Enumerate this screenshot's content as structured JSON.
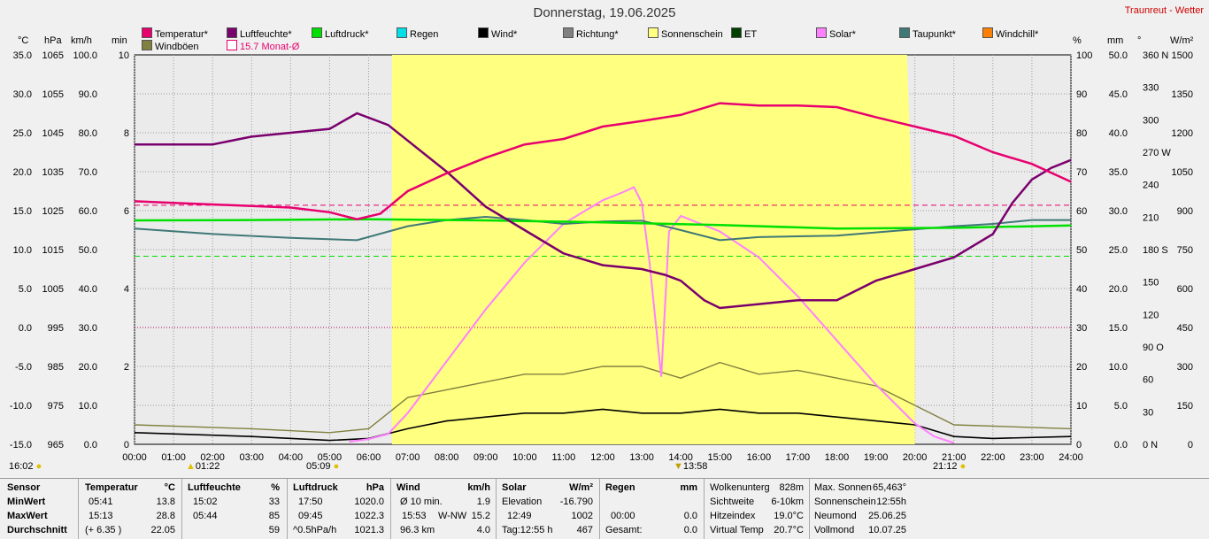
{
  "title": "Donnerstag, 19.06.2025",
  "brand": "Traunreut - Wetter",
  "units": {
    "c": "°C",
    "hpa": "hPa",
    "kmh": "km/h",
    "min": "min",
    "pct": "%",
    "mm": "mm",
    "deg": "°",
    "wm2": "W/m²"
  },
  "legend": [
    {
      "label": "Temperatur*",
      "color": "#e8006e"
    },
    {
      "label": "Luftfeuchte*",
      "color": "#7a006e"
    },
    {
      "label": "Luftdruck*",
      "color": "#00e000"
    },
    {
      "label": "Regen",
      "color": "#00e0e8"
    },
    {
      "label": "Wind*",
      "color": "#000000"
    },
    {
      "label": "Richtung*",
      "color": "#808080"
    },
    {
      "label": "Sonnenschein",
      "color": "#ffff80"
    },
    {
      "label": "ET",
      "color": "#004000"
    },
    {
      "label": "Solar*",
      "color": "#ff80ff"
    },
    {
      "label": "Taupunkt*",
      "color": "#407878"
    },
    {
      "label": "Windchill*",
      "color": "#ff8000"
    },
    {
      "label": "Windböen",
      "color": "#808040"
    },
    {
      "label": "15.7 Monat-Ø",
      "color": "#e8006e"
    }
  ],
  "axes": {
    "temp": [
      "35.0",
      "30.0",
      "25.0",
      "20.0",
      "15.0",
      "10.0",
      "5.0",
      "0.0",
      "-5.0",
      "-10.0",
      "-15.0"
    ],
    "press": [
      "1065",
      "1055",
      "1045",
      "1035",
      "1025",
      "1015",
      "1005",
      "995",
      "985",
      "975",
      "965"
    ],
    "wind": [
      "100.0",
      "90.0",
      "80.0",
      "70.0",
      "60.0",
      "50.0",
      "40.0",
      "30.0",
      "20.0",
      "10.0",
      "0.0"
    ],
    "min": [
      "10",
      "8",
      "6",
      "4",
      "2",
      "0"
    ],
    "hum": [
      "100",
      "90",
      "80",
      "70",
      "60",
      "50",
      "40",
      "30",
      "20",
      "10",
      "0"
    ],
    "rain": [
      "50.0",
      "45.0",
      "40.0",
      "35.0",
      "30.0",
      "25.0",
      "20.0",
      "15.0",
      "10.0",
      "5.0",
      "0.0"
    ],
    "dir": [
      "360 N",
      "330",
      "300",
      "270 W",
      "240",
      "210",
      "180 S",
      "150",
      "120",
      "90 O",
      "60",
      "30",
      "0 N"
    ],
    "solar": [
      "1500",
      "1350",
      "1200",
      "1050",
      "900",
      "750",
      "600",
      "450",
      "300",
      "150",
      "0"
    ],
    "hours": [
      "00:00",
      "01:00",
      "02:00",
      "03:00",
      "04:00",
      "05:00",
      "06:00",
      "07:00",
      "08:00",
      "09:00",
      "10:00",
      "11:00",
      "12:00",
      "13:00",
      "14:00",
      "15:00",
      "16:00",
      "17:00",
      "18:00",
      "19:00",
      "20:00",
      "21:00",
      "22:00",
      "23:00",
      "24:00"
    ]
  },
  "markers": {
    "left": "16:02",
    "moonrise": "01:22",
    "sunrise": "05:09",
    "solarnoon": "13:58",
    "sunset": "21:12"
  },
  "chart_data": {
    "type": "line",
    "title": "Donnerstag, 19.06.2025",
    "x_unit": "hour",
    "xlim": [
      0,
      24
    ],
    "series": [
      {
        "name": "Temperatur*",
        "axis": "°C",
        "ylim": [
          -15,
          35
        ],
        "points": [
          [
            0,
            16.2
          ],
          [
            1,
            16
          ],
          [
            2,
            15.8
          ],
          [
            3,
            15.6
          ],
          [
            4,
            15.4
          ],
          [
            5,
            14.8
          ],
          [
            5.7,
            13.9
          ],
          [
            6.3,
            14.6
          ],
          [
            7,
            17.5
          ],
          [
            8,
            19.8
          ],
          [
            9,
            21.8
          ],
          [
            10,
            23.5
          ],
          [
            11,
            24.2
          ],
          [
            12,
            25.8
          ],
          [
            13,
            26.5
          ],
          [
            14,
            27.3
          ],
          [
            15,
            28.8
          ],
          [
            16,
            28.5
          ],
          [
            17,
            28.5
          ],
          [
            18,
            28.3
          ],
          [
            19,
            27
          ],
          [
            20,
            25.8
          ],
          [
            21,
            24.6
          ],
          [
            22,
            22.5
          ],
          [
            23,
            21
          ],
          [
            24,
            18.7
          ]
        ]
      },
      {
        "name": "Luftfeuchte*",
        "axis": "%",
        "ylim": [
          0,
          100
        ],
        "points": [
          [
            0,
            77
          ],
          [
            1,
            77
          ],
          [
            2,
            77
          ],
          [
            3,
            79
          ],
          [
            4,
            80
          ],
          [
            5,
            81
          ],
          [
            5.7,
            85
          ],
          [
            6.5,
            82
          ],
          [
            7,
            78
          ],
          [
            8,
            70
          ],
          [
            9,
            61
          ],
          [
            10,
            55
          ],
          [
            11,
            49
          ],
          [
            12,
            46
          ],
          [
            13,
            45
          ],
          [
            13.6,
            43.5
          ],
          [
            14,
            42
          ],
          [
            14.6,
            37
          ],
          [
            15,
            35
          ],
          [
            16,
            36
          ],
          [
            17,
            37
          ],
          [
            18,
            37
          ],
          [
            19,
            42
          ],
          [
            20,
            45
          ],
          [
            21,
            48
          ],
          [
            22,
            54
          ],
          [
            22.5,
            62
          ],
          [
            23,
            68
          ],
          [
            23.5,
            71
          ],
          [
            24,
            73
          ]
        ]
      },
      {
        "name": "Luftdruck*",
        "axis": "hPa",
        "ylim": [
          965,
          1065
        ],
        "points": [
          [
            0,
            1022.5
          ],
          [
            3,
            1022.6
          ],
          [
            6,
            1022.8
          ],
          [
            9,
            1022.5
          ],
          [
            12,
            1022
          ],
          [
            15,
            1021.3
          ],
          [
            18,
            1020.4
          ],
          [
            21,
            1020.6
          ],
          [
            24,
            1021.2
          ]
        ]
      },
      {
        "name": "Taupunkt*",
        "axis": "°C",
        "ylim": [
          -15,
          35
        ],
        "points": [
          [
            0,
            12.7
          ],
          [
            2,
            12
          ],
          [
            4,
            11.5
          ],
          [
            5.7,
            11.2
          ],
          [
            7,
            13
          ],
          [
            8,
            13.8
          ],
          [
            9,
            14.2
          ],
          [
            10,
            13.8
          ],
          [
            11,
            13.3
          ],
          [
            12,
            13.6
          ],
          [
            13,
            13.7
          ],
          [
            14,
            12.5
          ],
          [
            15,
            11.2
          ],
          [
            16,
            11.6
          ],
          [
            17,
            11.7
          ],
          [
            18,
            11.8
          ],
          [
            19,
            12.2
          ],
          [
            20,
            12.6
          ],
          [
            21,
            13
          ],
          [
            22,
            13.3
          ],
          [
            23,
            13.8
          ],
          [
            24,
            13.8
          ]
        ]
      },
      {
        "name": "Solar*",
        "axis": "W/m²",
        "ylim": [
          0,
          1500
        ],
        "points": [
          [
            5.5,
            10
          ],
          [
            6,
            20
          ],
          [
            6.5,
            40
          ],
          [
            7,
            120
          ],
          [
            8,
            320
          ],
          [
            9,
            520
          ],
          [
            10,
            700
          ],
          [
            11,
            850
          ],
          [
            12,
            940
          ],
          [
            12.5,
            970
          ],
          [
            12.8,
            990
          ],
          [
            13,
            930
          ],
          [
            13.2,
            700
          ],
          [
            13.35,
            480
          ],
          [
            13.5,
            260
          ],
          [
            13.7,
            820
          ],
          [
            14,
            880
          ],
          [
            15,
            820
          ],
          [
            16,
            720
          ],
          [
            17,
            570
          ],
          [
            18,
            400
          ],
          [
            19,
            230
          ],
          [
            20,
            80
          ],
          [
            20.5,
            30
          ],
          [
            21,
            5
          ]
        ]
      },
      {
        "name": "Sonnenschein",
        "axis": "min",
        "ylim": [
          0,
          10
        ],
        "points": [
          [
            6.6,
            10
          ],
          [
            7,
            10
          ],
          [
            13.4,
            10
          ],
          [
            14,
            10
          ],
          [
            19.8,
            10
          ],
          [
            20,
            4
          ]
        ]
      },
      {
        "name": "Wind*",
        "axis": "km/h",
        "ylim": [
          0,
          100
        ],
        "points": [
          [
            0,
            3
          ],
          [
            3,
            2
          ],
          [
            5,
            1
          ],
          [
            6,
            1.5
          ],
          [
            7,
            4
          ],
          [
            8,
            6
          ],
          [
            9,
            7
          ],
          [
            10,
            8
          ],
          [
            11,
            8
          ],
          [
            12,
            9
          ],
          [
            13,
            8
          ],
          [
            14,
            8
          ],
          [
            15,
            9
          ],
          [
            16,
            8
          ],
          [
            17,
            8
          ],
          [
            18,
            7
          ],
          [
            19,
            6
          ],
          [
            20,
            5
          ],
          [
            21,
            2
          ],
          [
            22,
            1.5
          ],
          [
            24,
            2
          ]
        ]
      },
      {
        "name": "Windböen",
        "axis": "km/h",
        "ylim": [
          0,
          100
        ],
        "points": [
          [
            0,
            5
          ],
          [
            3,
            4
          ],
          [
            5,
            3
          ],
          [
            6,
            4
          ],
          [
            7,
            12
          ],
          [
            8,
            14
          ],
          [
            9,
            16
          ],
          [
            10,
            18
          ],
          [
            11,
            18
          ],
          [
            12,
            20
          ],
          [
            13,
            20
          ],
          [
            14,
            17
          ],
          [
            15,
            21
          ],
          [
            16,
            18
          ],
          [
            17,
            19
          ],
          [
            18,
            17
          ],
          [
            19,
            15
          ],
          [
            20,
            10
          ],
          [
            21,
            5
          ],
          [
            24,
            4
          ]
        ]
      },
      {
        "name": "Richtung*",
        "axis": "°",
        "ylim": [
          0,
          360
        ]
      }
    ],
    "reference_lines": [
      {
        "label": "15.7 Monat-Ø",
        "axis": "°C",
        "value": 15.7
      },
      {
        "axis": "hPa",
        "value": 1013.3
      },
      {
        "axis": "°C",
        "value": 0
      }
    ]
  },
  "stats": {
    "sensor": {
      "h": "Sensor",
      "min": "MinWert",
      "max": "MaxWert",
      "avg": "Durchschnitt"
    },
    "temp": {
      "h": "Temperatur",
      "u": "°C",
      "min_t": "05:41",
      "min_v": "13.8",
      "max_t": "15:13",
      "max_v": "28.8",
      "avg_t": "(+ 6.35 )",
      "avg_v": "22.05"
    },
    "hum": {
      "h": "Luftfeuchte",
      "u": "%",
      "min_t": "15:02",
      "min_v": "33",
      "max_t": "05:44",
      "max_v": "85",
      "avg_v": "59"
    },
    "press": {
      "h": "Luftdruck",
      "u": "hPa",
      "min_t": "17:50",
      "min_v": "1020.0",
      "max_t": "09:45",
      "max_v": "1022.3",
      "avg_t": "^0.5hPa/h",
      "avg_v": "1021.3"
    },
    "wind": {
      "h": "Wind",
      "u": "km/h",
      "min_t": "Ø 10 min.",
      "min_v": "1.9",
      "max_t": "15:53",
      "max_dir": "W-NW",
      "max_v": "15.2",
      "avg_t": "96.3 km",
      "avg_v": "4.0"
    },
    "solar": {
      "h": "Solar",
      "u": "W/m²",
      "min_t": "Elevation",
      "min_v": "-16.790",
      "max_t": "12:49",
      "max_v": "1002",
      "avg_t": "Tag:12:55 h",
      "avg_v": "467"
    },
    "rain": {
      "h": "Regen",
      "u": "mm",
      "max_t": "00:00",
      "max_v": "0.0",
      "avg_t": "Gesamt:",
      "avg_v": "0.0"
    },
    "misc": [
      {
        "k": "Wolkenunterg",
        "v": "828m"
      },
      {
        "k": "Sichtweite",
        "v": "6-10km"
      },
      {
        "k": "Hitzeindex",
        "v": "19.0°C"
      },
      {
        "k": "Virtual Temp",
        "v": "20.7°C"
      }
    ],
    "sun": [
      {
        "k": "Max. Sonnen",
        "v": "65,463°"
      },
      {
        "k": "Sonnenschein",
        "v": "12:55h"
      },
      {
        "k": "Neumond",
        "v": "25.06.25"
      },
      {
        "k": "Vollmond",
        "v": "10.07.25"
      }
    ]
  }
}
